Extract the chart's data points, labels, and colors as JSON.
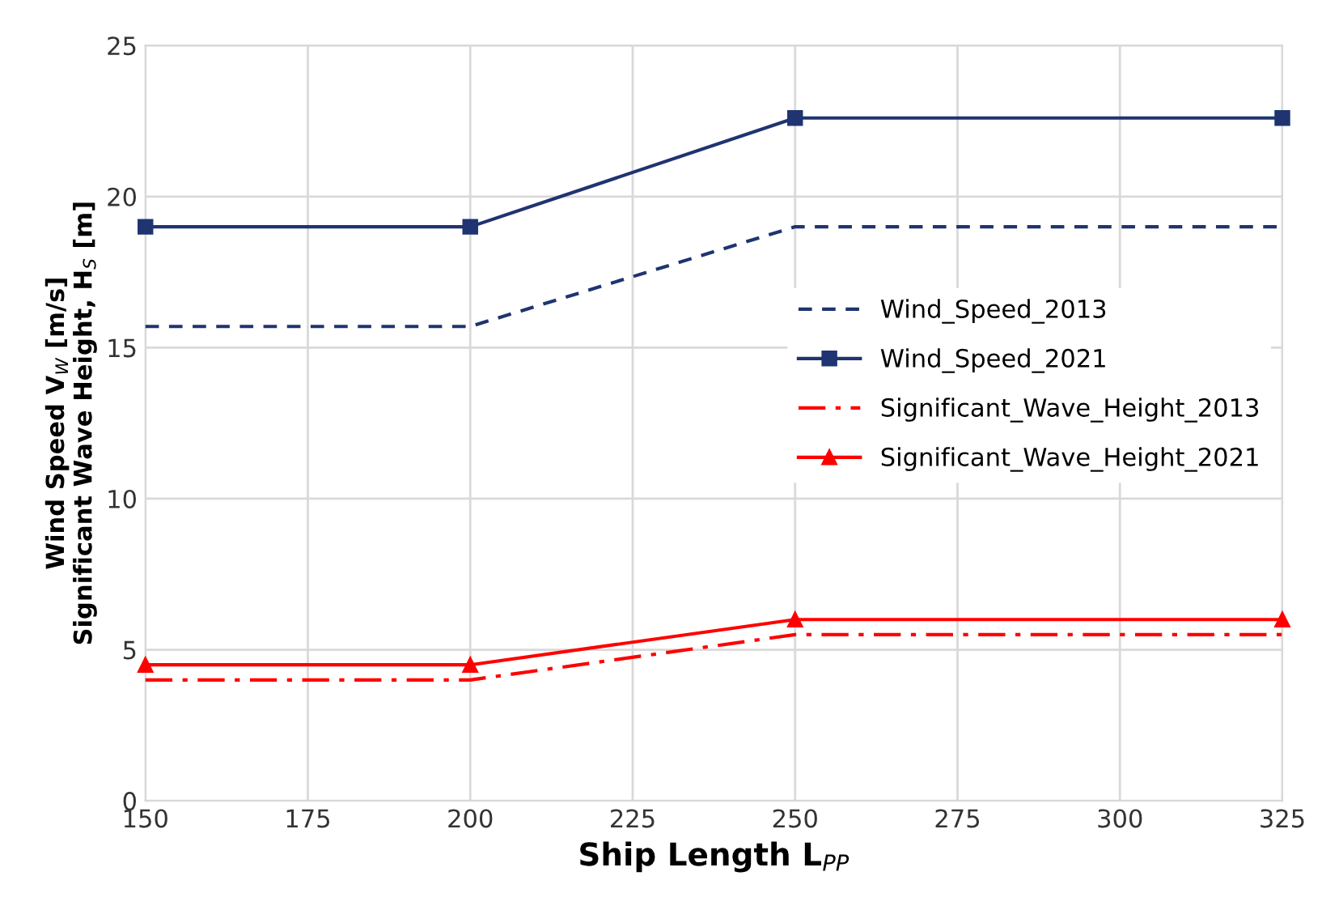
{
  "chart_data": {
    "type": "line",
    "xlabel": "Ship Length L$_{PP}$",
    "ylabel": "Wind Speed V$_{W}$ [m/s]\nSignificant Wave Height, H$_{S}$ [m]",
    "x": [
      150,
      200,
      250,
      325
    ],
    "series": [
      {
        "name": "Wind_Speed_2013",
        "color": "#1f3470",
        "values": [
          15.7,
          15.7,
          19,
          19
        ],
        "line_style": "dashed",
        "marker": "none"
      },
      {
        "name": "Wind_Speed_2021",
        "color": "#1f3470",
        "values": [
          19,
          19,
          22.6,
          22.6
        ],
        "line_style": "solid",
        "marker": "square"
      },
      {
        "name": "Significant_Wave_Height_2013",
        "color": "#ff0000",
        "values": [
          4,
          4,
          5.5,
          5.5
        ],
        "line_style": "dashdot",
        "marker": "none"
      },
      {
        "name": "Significant_Wave_Height_2021",
        "color": "#ff0000",
        "values": [
          4.5,
          4.5,
          6,
          6
        ],
        "line_style": "solid",
        "marker": "triangle"
      }
    ],
    "xlim": [
      150,
      325
    ],
    "xticks": [
      150,
      175,
      200,
      225,
      250,
      275,
      300,
      325
    ],
    "ylim": [
      0,
      25
    ],
    "yticks": [
      0,
      5,
      10,
      15,
      20,
      25
    ],
    "grid": true,
    "legend": "right"
  }
}
